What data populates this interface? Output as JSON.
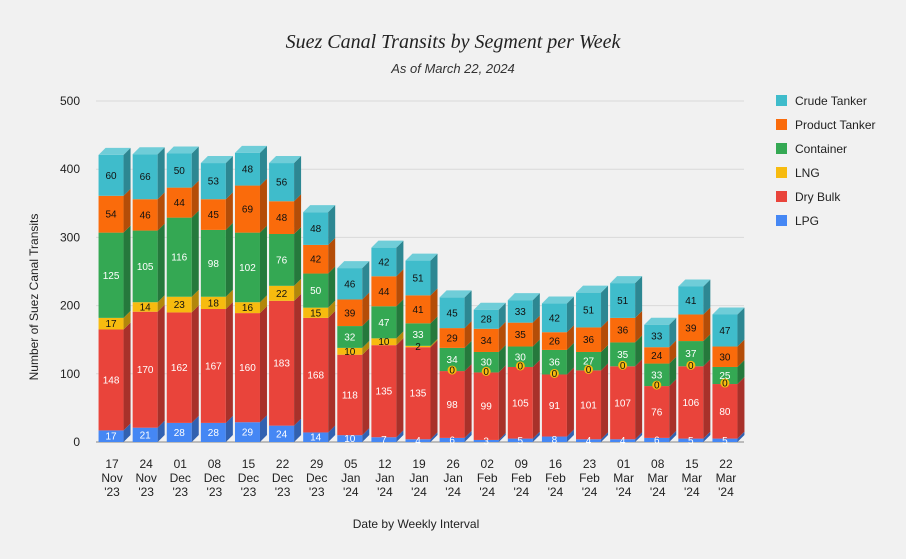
{
  "colors": {
    "background": "#f1f1f1",
    "grid": "#d9d9d9",
    "Crude Tanker": "#3fbccb",
    "Product Tanker": "#fa6b0b",
    "Container": "#34a853",
    "LNG": "#f7bb0f",
    "Dry Bulk": "#e9443b",
    "LPG": "#4587f4"
  },
  "chart_data": {
    "type": "bar",
    "stacked": true,
    "style": "3d",
    "title": "Suez Canal Transits by Segment per Week",
    "subtitle": "As of March 22, 2024",
    "xlabel": "Date by Weekly Interval",
    "ylabel": "Number of Suez Canal Transits",
    "ylim": [
      0,
      500
    ],
    "yticks": [
      0,
      100,
      200,
      300,
      400,
      500
    ],
    "grid": true,
    "legend_position": "right",
    "categories": [
      [
        "17",
        "Nov",
        "'23"
      ],
      [
        "24",
        "Nov",
        "'23"
      ],
      [
        "01",
        "Dec",
        "'23"
      ],
      [
        "08",
        "Dec",
        "'23"
      ],
      [
        "15",
        "Dec",
        "'23"
      ],
      [
        "22",
        "Dec",
        "'23"
      ],
      [
        "29",
        "Dec",
        "'23"
      ],
      [
        "05",
        "Jan",
        "'24"
      ],
      [
        "12",
        "Jan",
        "'24"
      ],
      [
        "19",
        "Jan",
        "'24"
      ],
      [
        "26",
        "Jan",
        "'24"
      ],
      [
        "02",
        "Feb",
        "'24"
      ],
      [
        "09",
        "Feb",
        "'24"
      ],
      [
        "16",
        "Feb",
        "'24"
      ],
      [
        "23",
        "Feb",
        "'24"
      ],
      [
        "01",
        "Mar",
        "'24"
      ],
      [
        "08",
        "Mar",
        "'24"
      ],
      [
        "15",
        "Mar",
        "'24"
      ],
      [
        "22",
        "Mar",
        "'24"
      ]
    ],
    "series": [
      {
        "name": "LPG",
        "values": [
          17,
          21,
          28,
          28,
          29,
          24,
          14,
          10,
          7,
          4,
          6,
          3,
          5,
          8,
          4,
          4,
          6,
          5,
          5
        ]
      },
      {
        "name": "Dry Bulk",
        "values": [
          148,
          170,
          162,
          167,
          160,
          183,
          168,
          118,
          135,
          135,
          98,
          99,
          105,
          91,
          101,
          107,
          76,
          106,
          80
        ]
      },
      {
        "name": "LNG",
        "values": [
          17,
          14,
          23,
          18,
          16,
          22,
          15,
          10,
          10,
          2,
          0,
          0,
          0,
          0,
          0,
          0,
          0,
          0,
          0
        ]
      },
      {
        "name": "Container",
        "values": [
          125,
          105,
          116,
          98,
          102,
          76,
          50,
          32,
          47,
          33,
          34,
          30,
          30,
          36,
          27,
          35,
          33,
          37,
          25
        ]
      },
      {
        "name": "Product Tanker",
        "values": [
          54,
          46,
          44,
          45,
          69,
          48,
          42,
          39,
          44,
          41,
          29,
          34,
          35,
          26,
          36,
          36,
          24,
          39,
          30
        ]
      },
      {
        "name": "Crude Tanker",
        "values": [
          60,
          66,
          50,
          53,
          48,
          56,
          48,
          46,
          42,
          51,
          45,
          28,
          33,
          42,
          51,
          51,
          33,
          41,
          47
        ]
      }
    ],
    "legend_order": [
      "Crude Tanker",
      "Product Tanker",
      "Container",
      "LNG",
      "Dry Bulk",
      "LPG"
    ]
  }
}
